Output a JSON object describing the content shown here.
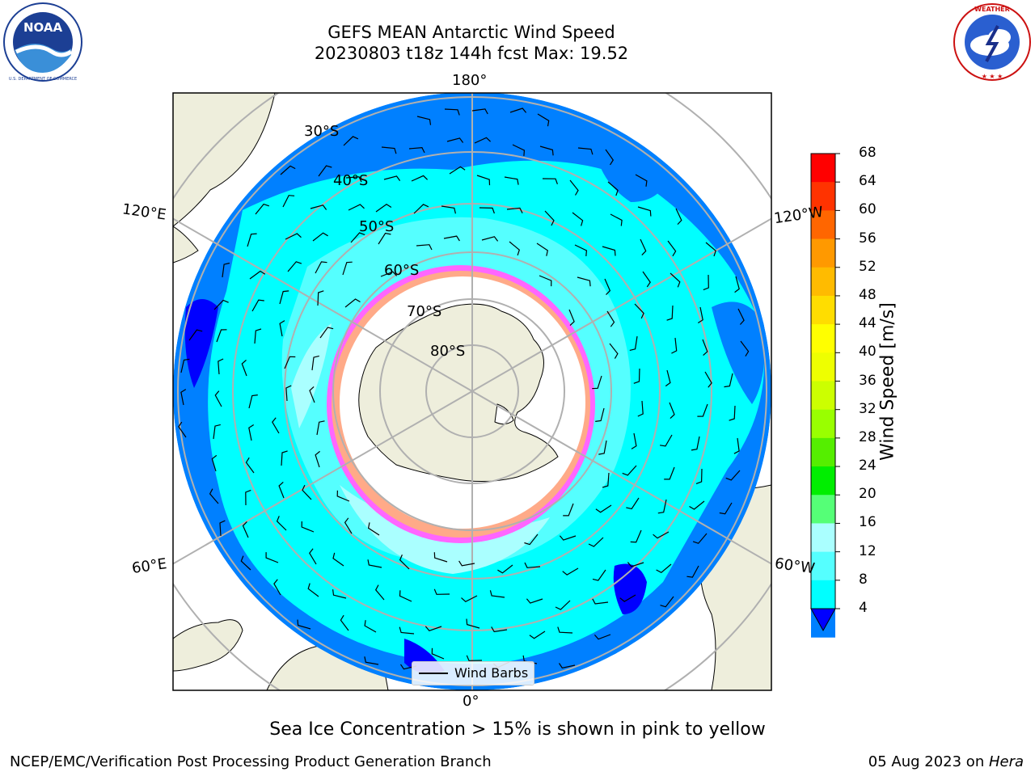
{
  "title": {
    "line1": "GEFS MEAN Antarctic Wind Speed",
    "line2": "20230803 t18z 144h fcst   Max: 19.52"
  },
  "logos": {
    "left": {
      "text": "NOAA",
      "ring_text": "NATIONAL OCEANIC AND ATMOSPHERIC ADMINISTRATION · U.S. DEPARTMENT OF COMMERCE"
    },
    "right": {
      "ring_text": "NATIONAL WEATHER SERVICE"
    }
  },
  "map": {
    "projection": "south-polar-stereographic",
    "longitude_labels": {
      "top": "180°",
      "bottom": "0°",
      "upper_left": "120°E",
      "lower_left": "60°E",
      "upper_right": "120°W",
      "lower_right": "60°W"
    },
    "latitude_labels": [
      "30°S",
      "40°S",
      "50°S",
      "60°S",
      "70°S",
      "80°S"
    ],
    "legend": {
      "label": "Wind Barbs"
    },
    "colors": {
      "land": "#eeeedc",
      "ice_edge": "#ff66ff",
      "ice_core": "#ffffff",
      "grid": "#b0b0b0"
    }
  },
  "colorbar": {
    "label": "Wind Speed [m/s]",
    "ticks": [
      "68",
      "64",
      "60",
      "56",
      "52",
      "48",
      "44",
      "40",
      "36",
      "32",
      "28",
      "24",
      "20",
      "16",
      "12",
      "8",
      "4"
    ],
    "colors": [
      "#ff0000",
      "#ff3300",
      "#ff6600",
      "#ff9900",
      "#ffbb00",
      "#ffdd00",
      "#ffff00",
      "#eeff00",
      "#ccff00",
      "#99ff00",
      "#55ee00",
      "#00ee00",
      "#55ff77",
      "#aaffff",
      "#55ffff",
      "#00ffff",
      "#0080ff"
    ],
    "under_color": "#0000ff"
  },
  "caption": "Sea Ice Concentration > 15% is shown in pink to yellow",
  "footer": {
    "left": "NCEP/EMC/Verification Post Processing Product Generation Branch",
    "right_date": "05 Aug 2023 on ",
    "right_machine": "Hera"
  }
}
